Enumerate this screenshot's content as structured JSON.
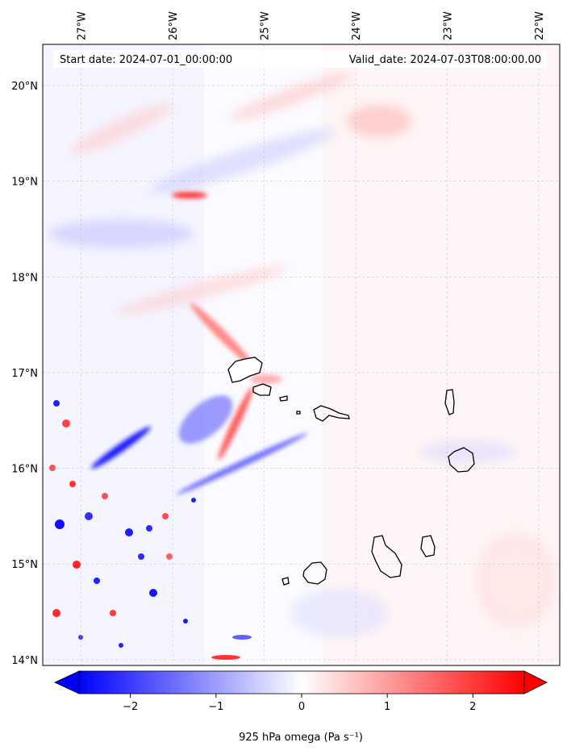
{
  "map": {
    "header_left": "Start date: 2024-07-01_00:00:00",
    "header_right": "Valid_date: 2024-07-03T08:00:00.00",
    "lon_labels": [
      "27°W",
      "26°W",
      "25°W",
      "24°W",
      "23°W",
      "22°W"
    ],
    "lon_values": [
      -27,
      -26,
      -25,
      -24,
      -23,
      -22
    ],
    "lat_labels": [
      "20°N",
      "19°N",
      "18°N",
      "17°N",
      "16°N",
      "15°N",
      "14°N"
    ],
    "lat_values": [
      20,
      19,
      18,
      17,
      16,
      15,
      14
    ],
    "extent": {
      "lon_min": -27.42,
      "lon_max": -21.77,
      "lat_min": 13.94,
      "lat_max": 20.43
    },
    "colormap": "bwr",
    "colors": {
      "negative": "#0000ff",
      "zero": "#ffffff",
      "positive": "#ff0000",
      "coastline": "#000000"
    }
  },
  "colorbar": {
    "label": "925 hPa omega (Pa s⁻¹)",
    "ticks": [
      "−2",
      "−1",
      "0",
      "1",
      "2"
    ],
    "tick_values": [
      -2,
      -1,
      0,
      1,
      2
    ],
    "vmin": -2.6,
    "vmax": 2.6,
    "extend": "both"
  }
}
